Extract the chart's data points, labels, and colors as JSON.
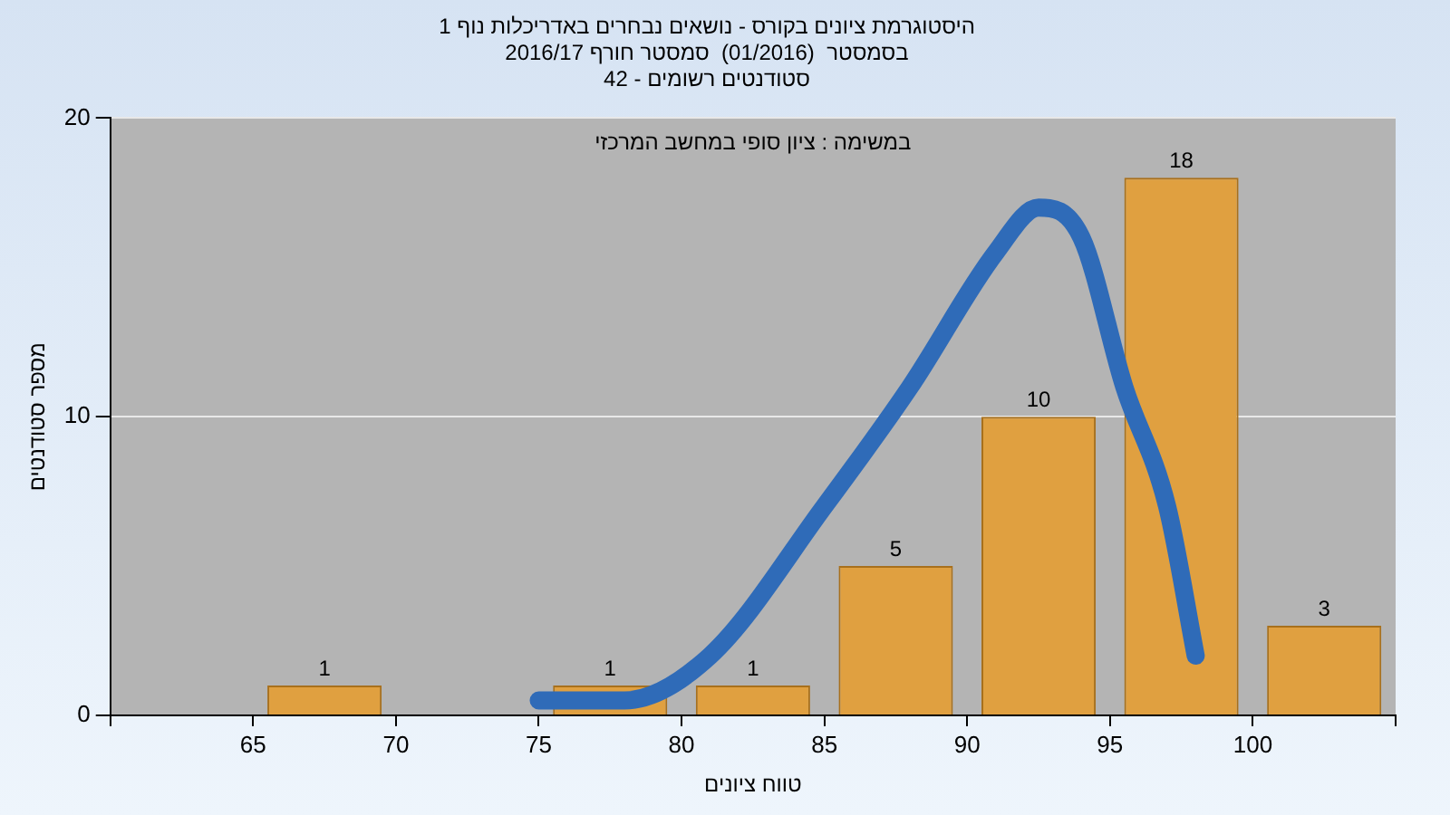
{
  "chart_data": {
    "type": "histogram",
    "title": "היסטוגרמת ציונים בקורס - נושאים נבחרים באדריכלות נוף 1",
    "subtitle": "בסמסטר  (01/2016)  סמסטר חורף 2016/17\nסטודנטים רשומים - 42",
    "xlabel": "טווח ציונים",
    "ylabel": "מספר סטודנטים",
    "annotations": [
      "במשימה : ציון סופי במחשב המרכזי"
    ],
    "bins": [
      65,
      70,
      75,
      80,
      85,
      90,
      95,
      100,
      105
    ],
    "series": [
      {
        "color": "#e0a040",
        "values": [
          1,
          0,
          1,
          1,
          5,
          10,
          18,
          3
        ],
        "value_labels": [
          "1",
          null,
          "1",
          "1",
          "5",
          "10",
          "18",
          "3"
        ]
      },
      {
        "type": "line",
        "color": "#2f6bb8",
        "x": [
          75,
          78,
          81,
          85,
          88,
          91,
          92.5,
          94,
          95.5,
          97,
          98
        ],
        "values": [
          0.5,
          0.5,
          2,
          7,
          11,
          15.5,
          17,
          16,
          11,
          7,
          2
        ]
      }
    ],
    "xlim": [
      60,
      105
    ],
    "xticks": [
      {
        "value": 60,
        "label": null
      },
      65,
      70,
      75,
      80,
      85,
      90,
      95,
      100,
      {
        "value": 105,
        "label": null
      }
    ],
    "ylim": [
      0,
      20
    ],
    "yticks": [
      0,
      10,
      20
    ],
    "grid": "y",
    "legend": false
  }
}
